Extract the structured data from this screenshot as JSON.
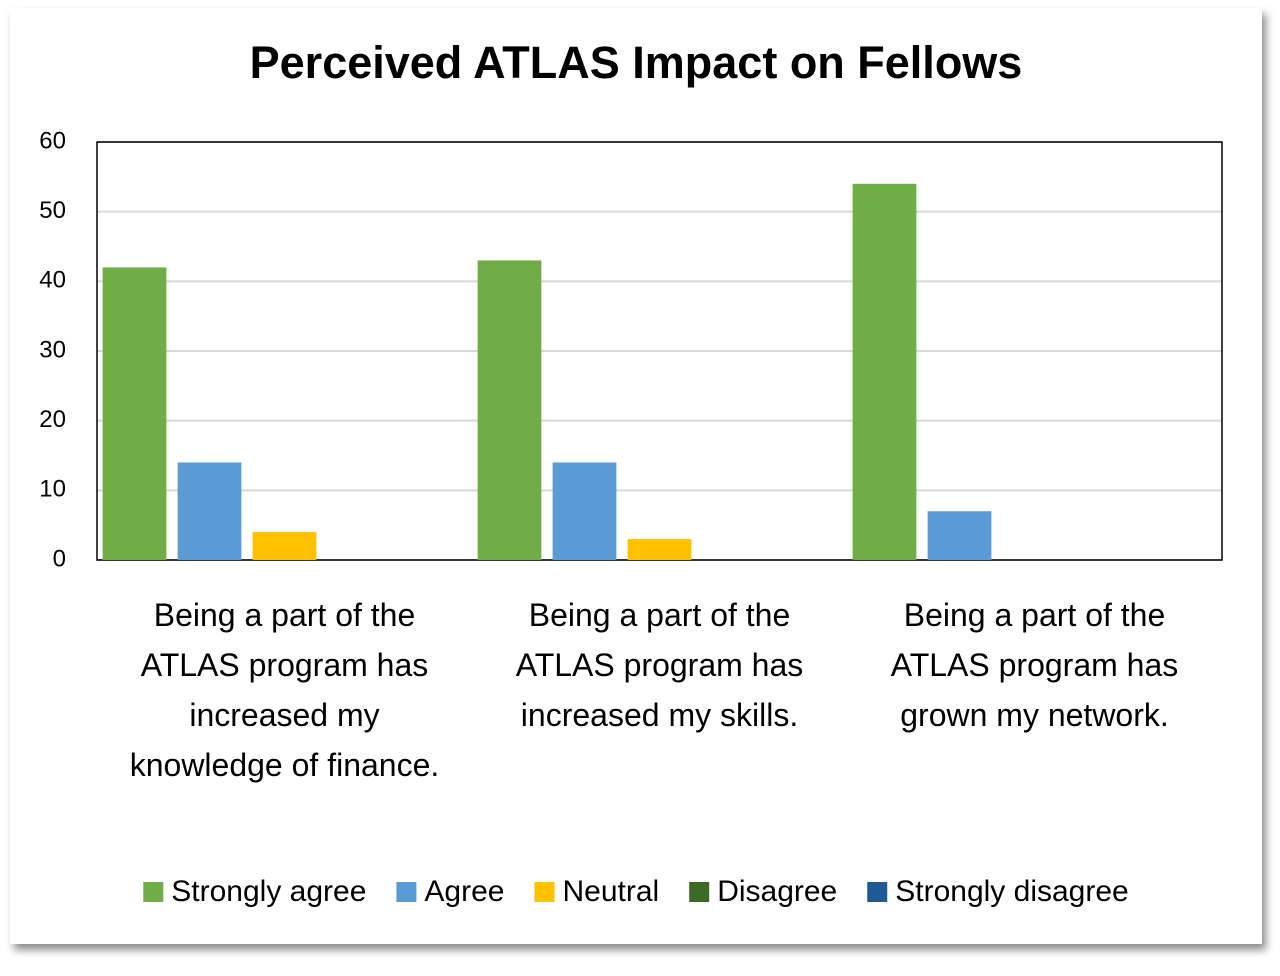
{
  "chart_data": {
    "type": "bar",
    "title": "Perceived ATLAS Impact on Fellows",
    "categories": [
      "Being a part of the ATLAS program has increased my knowledge of finance.",
      "Being a part of the ATLAS program has increased my skills.",
      "Being a part of the ATLAS program has grown my network."
    ],
    "series": [
      {
        "name": "Strongly agree",
        "color": "#70ad47",
        "values": [
          42,
          43,
          54
        ]
      },
      {
        "name": "Agree",
        "color": "#5b9bd5",
        "values": [
          14,
          14,
          7
        ]
      },
      {
        "name": "Neutral",
        "color": "#ffc000",
        "values": [
          4,
          3,
          0
        ]
      },
      {
        "name": "Disagree",
        "color": "#3a6b25",
        "values": [
          0,
          0,
          0
        ]
      },
      {
        "name": "Strongly disagree",
        "color": "#1f5a96",
        "values": [
          0,
          0,
          0
        ]
      }
    ],
    "ylim": [
      0,
      60
    ],
    "yticks": [
      0,
      10,
      20,
      30,
      40,
      50,
      60
    ],
    "grid": true,
    "legend": "bottom"
  }
}
